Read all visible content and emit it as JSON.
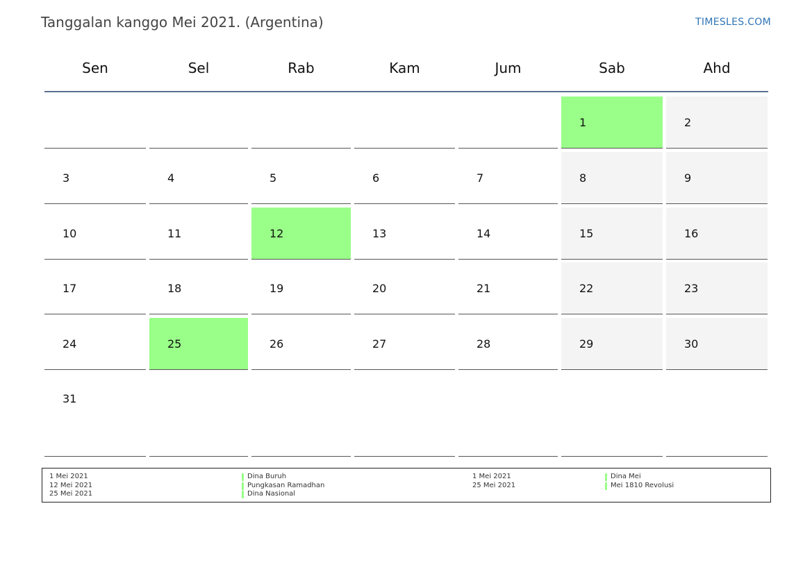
{
  "header": {
    "title": "Tanggalan kanggo Mei 2021. (Argentina)",
    "brand": "TIMESLES.COM"
  },
  "colors": {
    "holiday": "#99ff88",
    "weekend": "#f4f4f4",
    "header_rule": "#5a7090",
    "brand": "#2f74b5"
  },
  "weekdays": [
    "Sen",
    "Sel",
    "Rab",
    "Kam",
    "Jum",
    "Sab",
    "Ahd"
  ],
  "calendar": {
    "first_weekday_index": 5,
    "days_in_month": 31,
    "weekend_columns": [
      5,
      6
    ],
    "holidays": [
      1,
      12,
      25
    ]
  },
  "legend": {
    "group1_dates": [
      "1 Mei 2021",
      "12 Mei 2021",
      "25 Mei 2021"
    ],
    "group1_names": [
      "Dina Buruh",
      "Pungkasan Ramadhan",
      "Dina Nasional"
    ],
    "group2_dates": [
      "1 Mei 2021",
      "25 Mei 2021"
    ],
    "group2_names": [
      "Dina Mei",
      "Mei 1810 Revolusi"
    ]
  }
}
